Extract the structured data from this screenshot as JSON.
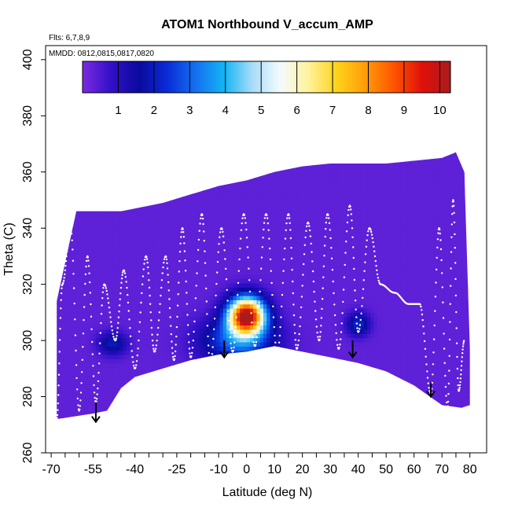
{
  "chart_data": {
    "type": "heatmap",
    "title": "ATOM1 Northbound V_accum_AMP",
    "annotations": {
      "flights": "Flts: 6,7,8,9",
      "dates": "MMDD: 0812,0815,0817,0820"
    },
    "xlabel": "Latitude (deg N)",
    "ylabel": "Theta (C)",
    "xlim": [
      -72,
      86
    ],
    "ylim": [
      260,
      405
    ],
    "x_ticks": [
      -70,
      -55,
      -40,
      -25,
      -10,
      0,
      10,
      20,
      30,
      40,
      50,
      60,
      70,
      80
    ],
    "x_tick_labels": [
      "-70",
      "-55",
      "-40",
      "-25",
      "-10",
      "0",
      "10",
      "20",
      "30",
      "40",
      "50",
      "60",
      "70",
      "80"
    ],
    "x_minor_step": 5,
    "y_ticks": [
      260,
      280,
      300,
      320,
      340,
      360,
      380,
      400
    ],
    "y_tick_labels": [
      "260",
      "280",
      "300",
      "320",
      "340",
      "360",
      "380",
      "400"
    ],
    "colorbar": {
      "min": 0,
      "max": 10.3,
      "ticks": [
        1,
        2,
        3,
        4,
        5,
        6,
        7,
        8,
        9,
        10
      ],
      "tick_labels": [
        "1",
        "2",
        "3",
        "4",
        "5",
        "6",
        "7",
        "8",
        "9",
        "10"
      ],
      "colors": [
        "#7a2be0",
        "#3210c8",
        "#0a0a9e",
        "#0a2cd8",
        "#1470f0",
        "#14b4f4",
        "#a8dcf8",
        "#f4fbff",
        "#fff29a",
        "#ffd21a",
        "#ff9c08",
        "#ff5400",
        "#e0100a",
        "#a81c1c"
      ]
    },
    "domain_top": [
      [
        -68,
        314
      ],
      [
        -61,
        346
      ],
      [
        -50,
        346
      ],
      [
        -45,
        346
      ],
      [
        -40,
        347
      ],
      [
        -30,
        349
      ],
      [
        -20,
        352
      ],
      [
        -10,
        355
      ],
      [
        0,
        357
      ],
      [
        10,
        360
      ],
      [
        20,
        362
      ],
      [
        30,
        363
      ],
      [
        40,
        363
      ],
      [
        50,
        363
      ],
      [
        60,
        364
      ],
      [
        70,
        365
      ],
      [
        75,
        367
      ],
      [
        78,
        360
      ],
      [
        80,
        297
      ]
    ],
    "domain_bottom": [
      [
        80,
        277
      ],
      [
        77,
        276
      ],
      [
        70,
        277
      ],
      [
        60,
        284
      ],
      [
        50,
        289
      ],
      [
        40,
        292
      ],
      [
        30,
        294
      ],
      [
        20,
        296
      ],
      [
        10,
        298
      ],
      [
        0,
        296
      ],
      [
        -10,
        295
      ],
      [
        -20,
        293
      ],
      [
        -30,
        290
      ],
      [
        -40,
        287
      ],
      [
        -45,
        283
      ],
      [
        -50,
        275
      ],
      [
        -55,
        274
      ],
      [
        -68,
        272
      ]
    ],
    "background_value": 0.3,
    "hotspots": [
      {
        "lat": 0,
        "theta": 309,
        "lat_radius": 6.5,
        "theta_radius": 6.5,
        "peak": 10
      },
      {
        "lat": -3,
        "theta": 300,
        "lat_radius": 13,
        "theta_radius": 8,
        "peak": 2.8
      },
      {
        "lat": 40,
        "theta": 306,
        "lat_radius": 4,
        "theta_radius": 4,
        "peak": 2.0
      },
      {
        "lat": -48,
        "theta": 299,
        "lat_radius": 5,
        "theta_radius": 4,
        "peak": 1.7
      }
    ],
    "arrows": [
      {
        "lat": -54,
        "theta_from": 278,
        "theta_to": 271
      },
      {
        "lat": -8,
        "theta_from": 300,
        "theta_to": 294
      },
      {
        "lat": 38,
        "theta_from": 300,
        "theta_to": 294
      },
      {
        "lat": 66,
        "theta_from": 285,
        "theta_to": 280
      }
    ],
    "flight_track": {
      "x_steps": [
        -68,
        -66,
        -63,
        -60,
        -57,
        -54,
        -51,
        -47,
        -44,
        -40,
        -36,
        -33,
        -29,
        -26,
        -23,
        -20,
        -16,
        -13,
        -9,
        -5,
        -1,
        3,
        7,
        11,
        15,
        18,
        22,
        26,
        29,
        33,
        37,
        40,
        44,
        48,
        53,
        58,
        62,
        66,
        69,
        72,
        74,
        76,
        78
      ],
      "theta_steps": [
        272,
        320,
        340,
        275,
        330,
        278,
        320,
        300,
        325,
        290,
        330,
        296,
        330,
        293,
        340,
        294,
        345,
        292,
        340,
        296,
        345,
        298,
        345,
        296,
        345,
        297,
        342,
        300,
        345,
        297,
        348,
        303,
        340,
        320,
        317,
        313,
        313,
        281,
        340,
        276,
        350,
        282,
        300
      ]
    }
  }
}
